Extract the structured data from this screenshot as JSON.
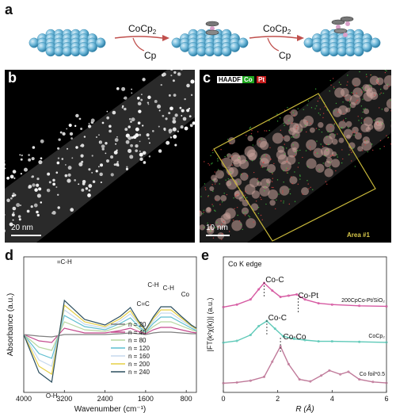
{
  "panels": {
    "a": {
      "letter": "a",
      "step1_reagent": "CoCp",
      "step1_sub": "2",
      "step1_byproduct": "Cp",
      "step2_reagent": "CoCp",
      "step2_sub": "2",
      "step2_byproduct": "Cp",
      "sphere_color": "#6fb8d9",
      "arrow_color": "#c0504d"
    },
    "b": {
      "letter": "b",
      "scale_label": "20 nm"
    },
    "c": {
      "letter": "c",
      "legend_haadf": "HAADF",
      "legend_co": "Co",
      "legend_pt": "Pt",
      "scale_label": "10 nm",
      "area_label": "Area #1",
      "box_color": "#c8b83a"
    },
    "d": {
      "letter": "d"
    },
    "e": {
      "letter": "e"
    }
  },
  "chart_data": [
    {
      "type": "line",
      "panel": "d",
      "title": "",
      "xlabel": "Wavenumber (cm⁻¹)",
      "ylabel": "Absorbance (a.u.)",
      "xlim": [
        4000,
        600
      ],
      "x_reversed": true,
      "xticks": [
        4000,
        3200,
        2400,
        1600,
        800
      ],
      "xtick_labels": [
        "4000",
        "3200",
        "2400",
        "1600",
        "800"
      ],
      "annotations": [
        "=C-H",
        "O-H",
        "C=C",
        "C-H",
        "C-H",
        "Co"
      ],
      "series": [
        {
          "name": "n = 20",
          "color": "#7f7f7f",
          "x": [
            4000,
            3700,
            3450,
            3200,
            2800,
            2400,
            2100,
            1900,
            1750,
            1600,
            1450,
            1300,
            1100,
            900,
            700,
            600
          ],
          "y": [
            0,
            -0.2,
            -0.3,
            0.0,
            0,
            0,
            0.1,
            0.2,
            0.1,
            0.0,
            0.2,
            0.3,
            0.3,
            0.2,
            0.1,
            0.1
          ]
        },
        {
          "name": "n = 40",
          "color": "#c44b8e",
          "x": [
            4000,
            3700,
            3450,
            3200,
            2800,
            2400,
            2100,
            1900,
            1750,
            1600,
            1450,
            1300,
            1100,
            900,
            700,
            600
          ],
          "y": [
            0,
            -0.8,
            -1.0,
            0.8,
            0.2,
            0.2,
            0.5,
            0.8,
            0.4,
            0.1,
            0.6,
            0.9,
            0.9,
            0.6,
            0.3,
            0.2
          ]
        },
        {
          "name": "n = 80",
          "color": "#b6d6a0",
          "x": [
            4000,
            3700,
            3450,
            3200,
            2800,
            2400,
            2100,
            1900,
            1750,
            1600,
            1450,
            1300,
            1100,
            900,
            700,
            600
          ],
          "y": [
            0,
            -1.6,
            -2.0,
            1.6,
            0.6,
            0.4,
            1.0,
            1.5,
            0.8,
            0.2,
            1.0,
            1.6,
            1.6,
            1.1,
            0.6,
            0.4
          ]
        },
        {
          "name": "n = 120",
          "color": "#5fbfd0",
          "x": [
            4000,
            3700,
            3450,
            3200,
            2800,
            2400,
            2100,
            1900,
            1750,
            1600,
            1450,
            1300,
            1100,
            900,
            700,
            600
          ],
          "y": [
            0,
            -2.4,
            -3.0,
            2.4,
            1.0,
            0.6,
            1.4,
            2.1,
            1.1,
            0.3,
            1.4,
            2.2,
            2.2,
            1.5,
            0.8,
            0.5
          ]
        },
        {
          "name": "n = 160",
          "color": "#c6d9ee",
          "x": [
            4000,
            3700,
            3450,
            3200,
            2800,
            2400,
            2100,
            1900,
            1750,
            1600,
            1450,
            1300,
            1100,
            900,
            700,
            600
          ],
          "y": [
            0,
            -3.2,
            -4.0,
            3.1,
            1.3,
            0.8,
            1.7,
            2.6,
            1.4,
            0.4,
            1.7,
            2.7,
            2.7,
            1.8,
            1.0,
            0.6
          ]
        },
        {
          "name": "n = 200",
          "color": "#e6cf45",
          "x": [
            4000,
            3700,
            3450,
            3200,
            2800,
            2400,
            2100,
            1900,
            1750,
            1600,
            1450,
            1300,
            1100,
            900,
            700,
            600
          ],
          "y": [
            0,
            -4.0,
            -5.0,
            3.7,
            1.6,
            1.0,
            2.0,
            3.0,
            1.6,
            0.5,
            2.0,
            3.1,
            3.1,
            2.1,
            1.1,
            0.7
          ]
        },
        {
          "name": "n = 240",
          "color": "#2c4f5f",
          "x": [
            4000,
            3700,
            3450,
            3200,
            2800,
            2400,
            2100,
            1900,
            1750,
            1600,
            1450,
            1300,
            1100,
            900,
            700,
            600
          ],
          "y": [
            0,
            -4.8,
            -6.0,
            4.3,
            1.9,
            1.2,
            2.3,
            3.4,
            1.8,
            0.6,
            2.2,
            3.5,
            3.5,
            2.3,
            1.2,
            0.8
          ]
        }
      ],
      "grid": false,
      "legend_position": "center-right"
    },
    {
      "type": "line",
      "panel": "e",
      "title": "Co K edge",
      "xlabel": "R (Å)",
      "ylabel": "|FT(k²χ(k))| (a.u.)",
      "xlim": [
        0,
        6
      ],
      "xticks": [
        0,
        2,
        4,
        6
      ],
      "peak_labels": [
        "Co-C",
        "Co-Pt",
        "Co-C",
        "Co-Co"
      ],
      "series": [
        {
          "name": "200CpCo-Pt/SiO₂",
          "color": "#d65aa2",
          "offset": 3.0,
          "x": [
            0,
            0.5,
            1.0,
            1.3,
            1.5,
            1.8,
            2.1,
            2.4,
            2.7,
            3.0,
            3.5,
            4.0,
            5.0,
            6.0
          ],
          "y": [
            0.05,
            0.15,
            0.35,
            0.75,
            1.0,
            0.7,
            0.45,
            0.5,
            0.55,
            0.35,
            0.2,
            0.15,
            0.1,
            0.08
          ]
        },
        {
          "name": "CoCp₂",
          "color": "#5ec9b8",
          "offset": 1.6,
          "x": [
            0,
            0.5,
            1.0,
            1.3,
            1.6,
            1.9,
            2.2,
            2.6,
            3.0,
            3.5,
            4.0,
            5.0,
            6.0
          ],
          "y": [
            0.05,
            0.12,
            0.35,
            0.7,
            0.9,
            0.6,
            0.3,
            0.2,
            0.15,
            0.1,
            0.1,
            0.08,
            0.06
          ]
        },
        {
          "name": "Co foil*0.5",
          "color": "#c07a9a",
          "offset": 0.0,
          "x": [
            0,
            0.5,
            1.0,
            1.5,
            1.8,
            2.1,
            2.4,
            2.8,
            3.2,
            3.6,
            3.9,
            4.3,
            4.6,
            5.0,
            5.5,
            6.0
          ],
          "y": [
            0.05,
            0.08,
            0.15,
            0.3,
            0.9,
            1.5,
            0.8,
            0.2,
            0.12,
            0.35,
            0.55,
            0.4,
            0.5,
            0.2,
            0.1,
            0.06
          ]
        }
      ],
      "grid": false
    }
  ]
}
